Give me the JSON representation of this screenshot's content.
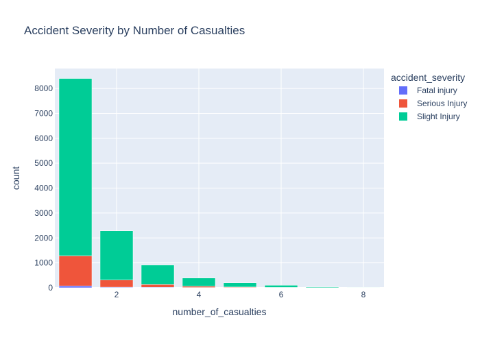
{
  "chart_data": {
    "type": "bar",
    "barmode": "stack",
    "title": "Accident Severity by Number of Casualties",
    "xlabel": "number_of_casualties",
    "ylabel": "count",
    "x": [
      1,
      2,
      3,
      4,
      5,
      6,
      7,
      8
    ],
    "xlim": [
      0.5,
      8.5
    ],
    "ylim": [
      0,
      8800
    ],
    "xticks": [
      2,
      4,
      6,
      8
    ],
    "yticks": [
      0,
      1000,
      2000,
      3000,
      4000,
      5000,
      6000,
      7000,
      8000
    ],
    "grid": true,
    "legend": {
      "title": "accident_severity",
      "placement": "right"
    },
    "series": [
      {
        "name": "Fatal injury",
        "color": "#636efa",
        "values": [
          75,
          25,
          20,
          10,
          5,
          3,
          1,
          1
        ]
      },
      {
        "name": "Serious Injury",
        "color": "#ef553b",
        "values": [
          1205,
          285,
          110,
          50,
          25,
          12,
          5,
          3
        ]
      },
      {
        "name": "Slight Injury",
        "color": "#00cc96",
        "values": [
          7120,
          1980,
          780,
          330,
          170,
          85,
          30,
          14
        ]
      }
    ]
  }
}
